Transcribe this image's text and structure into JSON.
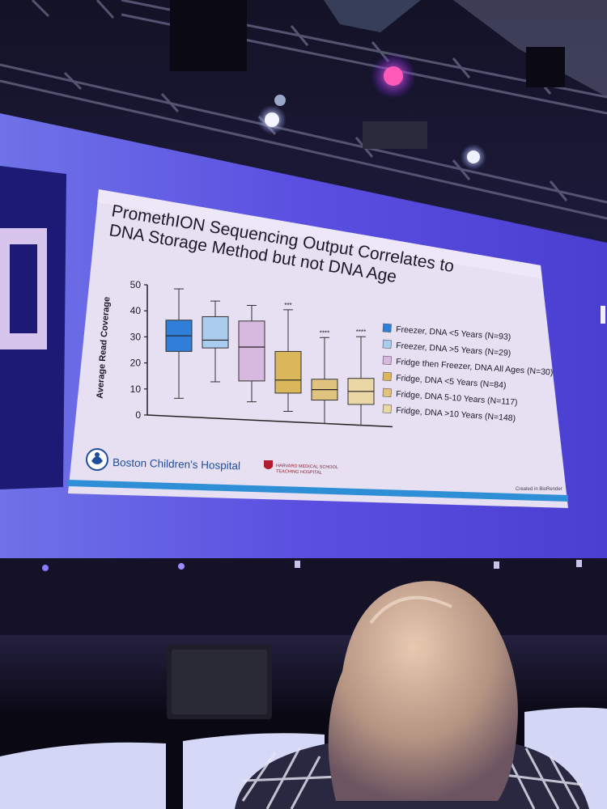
{
  "slide": {
    "title_line1": "PromethION Sequencing Output Correlates to",
    "title_line2": "DNA Storage Method but not DNA Age",
    "institution": "Boston Children's Hospital",
    "affiliation_line1": "HARVARD MEDICAL SCHOOL",
    "affiliation_line2": "TEACHING HOSPITAL",
    "credit": "Created in BioRender",
    "colors": {
      "slide_bg": "#e7dff2",
      "footer_stripe": "#2e8fd6",
      "screen_glow": "#5b4fe0"
    }
  },
  "chart_data": {
    "type": "box",
    "ylabel": "Average Read Coverage",
    "ylim": [
      0,
      50
    ],
    "yticks": [
      "0",
      "10",
      "20",
      "30",
      "40",
      "50"
    ],
    "yticks_values": [
      0,
      10,
      20,
      30,
      40,
      50
    ],
    "series": [
      {
        "name": "Freezer, DNA <5 Years (N=93)",
        "color": "#2f7fd8",
        "min": 7,
        "q1": 25,
        "median": 31,
        "q3": 37,
        "max": 49,
        "sig": ""
      },
      {
        "name": "Freezer, DNA >5 Years (N=29)",
        "color": "#a9ccef",
        "min": 14,
        "q1": 27,
        "median": 30,
        "q3": 39,
        "max": 45,
        "sig": ""
      },
      {
        "name": "Fridge then Freezer, DNA All Ages (N=30)",
        "color": "#d7b8de",
        "min": 7,
        "q1": 15,
        "median": 28,
        "q3": 38,
        "max": 44,
        "sig": ""
      },
      {
        "name": "Fridge, DNA <5 Years (N=84)",
        "color": "#d9b75a",
        "min": 4,
        "q1": 11,
        "median": 16,
        "q3": 27,
        "max": 43,
        "sig": "***"
      },
      {
        "name": "Fridge, DNA 5-10 Years (N=117)",
        "color": "#e0c37e",
        "min": 0,
        "q1": 9,
        "median": 13,
        "q3": 17,
        "max": 33,
        "sig": "****"
      },
      {
        "name": "Fridge, DNA >10 Years (N=148)",
        "color": "#ead7a6",
        "min": 0,
        "q1": 8,
        "median": 13,
        "q3": 18,
        "max": 34,
        "sig": "****"
      }
    ]
  }
}
